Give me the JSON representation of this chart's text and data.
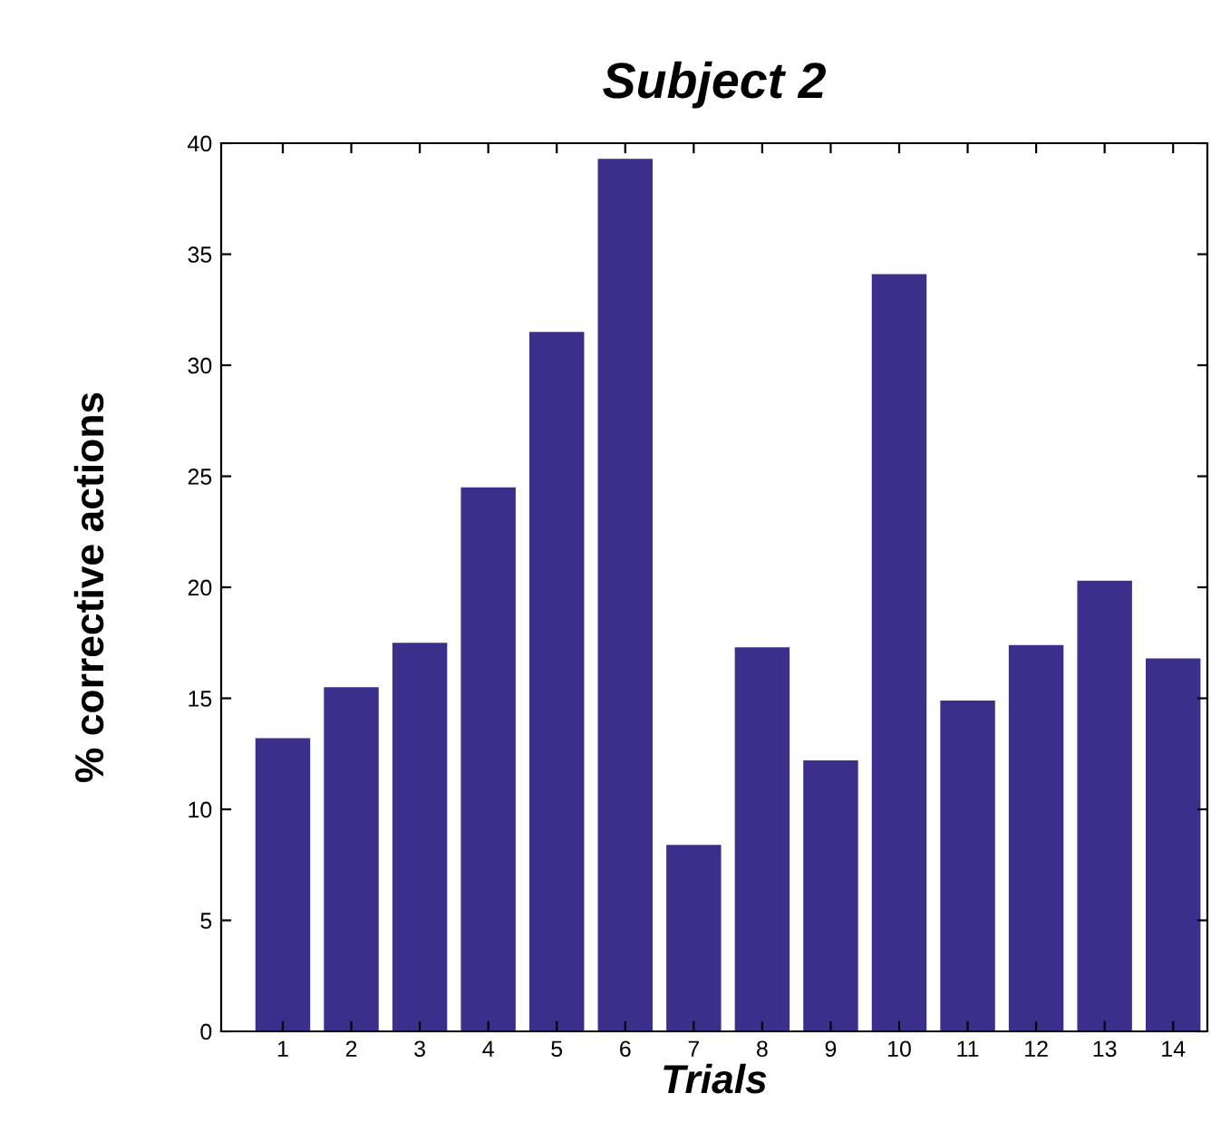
{
  "chart_data": {
    "type": "bar",
    "title": "Subject 2",
    "xlabel": "Trials",
    "ylabel": "% corrective actions",
    "categories": [
      "1",
      "2",
      "3",
      "4",
      "5",
      "6",
      "7",
      "8",
      "9",
      "10",
      "11",
      "12",
      "13",
      "14"
    ],
    "values": [
      13.2,
      15.5,
      17.5,
      24.5,
      31.5,
      39.3,
      8.4,
      17.3,
      12.2,
      34.1,
      14.9,
      17.4,
      20.3,
      16.8
    ],
    "color": "#3a2f8a",
    "ylim": [
      0,
      40
    ],
    "yticks": [
      0,
      5,
      10,
      15,
      20,
      25,
      30,
      35,
      40
    ],
    "grid": false
  }
}
